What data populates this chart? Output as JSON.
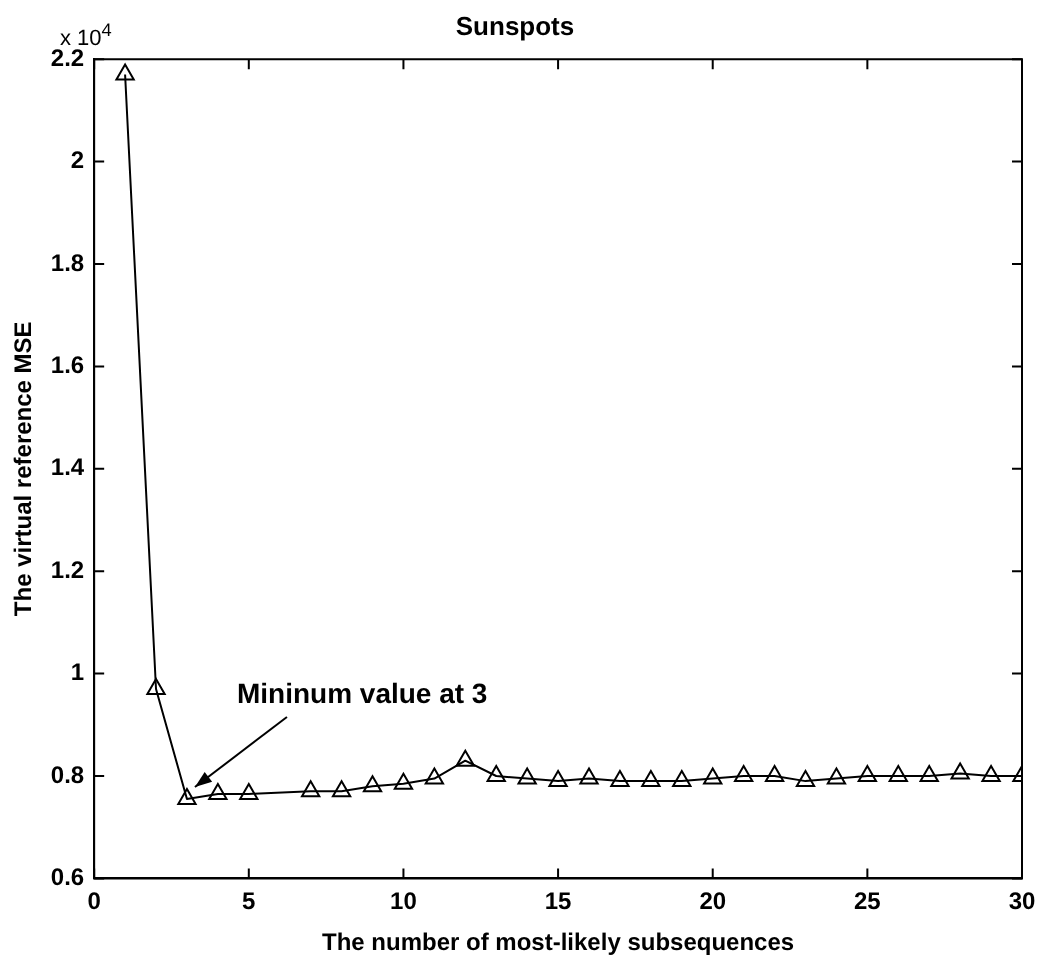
{
  "chart_data": {
    "type": "line",
    "title": "Sunspots",
    "xlabel": "The number of most-likely subsequences",
    "ylabel": "The virtual reference MSE",
    "x": [
      1,
      2,
      3,
      4,
      5,
      7,
      8,
      9,
      10,
      11,
      12,
      13,
      14,
      15,
      16,
      17,
      18,
      19,
      20,
      21,
      22,
      23,
      24,
      25,
      26,
      27,
      28,
      29,
      30
    ],
    "series": [
      {
        "color": "#000000",
        "values": [
          2.17,
          0.97,
          0.755,
          0.765,
          0.765,
          0.77,
          0.77,
          0.78,
          0.785,
          0.795,
          0.83,
          0.8,
          0.795,
          0.79,
          0.795,
          0.79,
          0.79,
          0.79,
          0.795,
          0.8,
          0.8,
          0.79,
          0.795,
          0.8,
          0.8,
          0.8,
          0.805,
          0.8,
          0.8
        ]
      }
    ],
    "xlim": [
      0,
      30
    ],
    "xticks": [
      0,
      5,
      10,
      15,
      20,
      25,
      30
    ],
    "ylim": [
      0.6,
      2.2
    ],
    "yticks": [
      0.6,
      0.8,
      1,
      1.2,
      1.4,
      1.6,
      1.8,
      2,
      2.2
    ],
    "marker": "triangle",
    "grid": false,
    "legend": false,
    "annotations": [
      "x 10$^{4}$",
      {
        "text": "Mininum value at 3",
        "x": 3,
        "y": 0.755
      }
    ]
  }
}
